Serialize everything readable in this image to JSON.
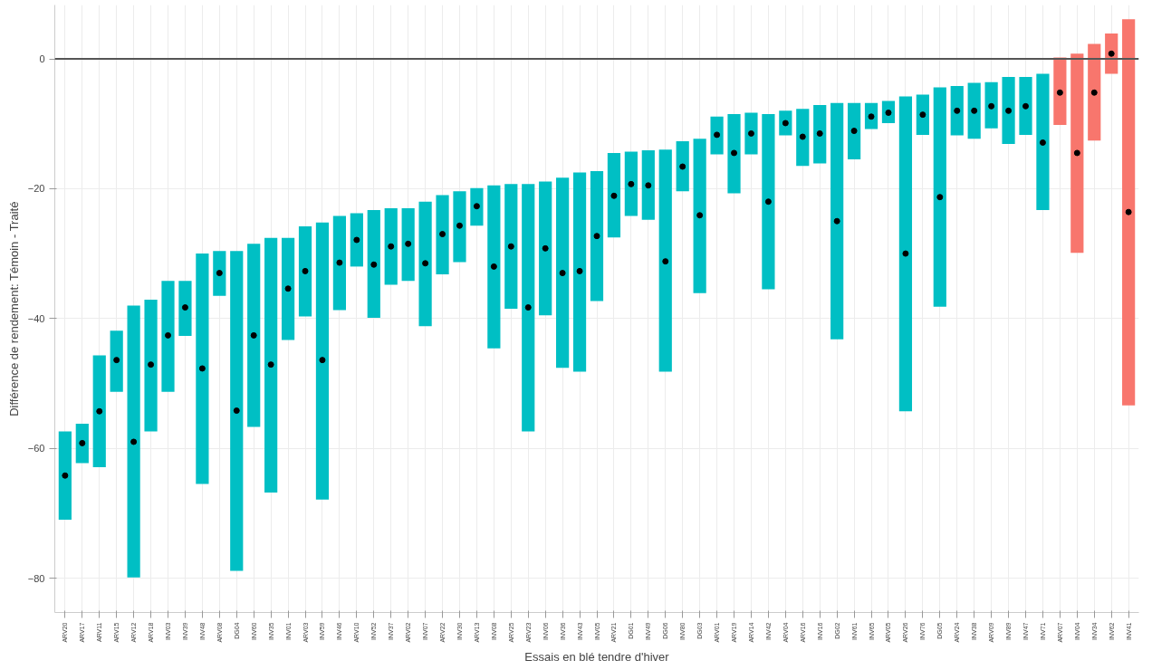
{
  "chart_data": {
    "type": "bar",
    "xlabel": "Essais en blé tendre d'hiver",
    "ylabel": "Différence de rendement: Témoin - Traité",
    "categories": [
      "ARV20",
      "ARV17",
      "ARV11",
      "ARV15",
      "ARV12",
      "ARV18",
      "INV03",
      "INV39",
      "INV48",
      "ARV08",
      "DG04",
      "INV60",
      "INV35",
      "INV01",
      "ARV03",
      "INV59",
      "INV46",
      "ARV10",
      "INV52",
      "INV37",
      "ARV02",
      "INV07",
      "ARV22",
      "INV30",
      "ARV13",
      "INV08",
      "ARV25",
      "ARV23",
      "INV06",
      "INV36",
      "INV43",
      "INV05",
      "ARV21",
      "DG01",
      "INV49",
      "DG06",
      "INV80",
      "DG03",
      "ARV01",
      "ARV19",
      "ARV14",
      "INV42",
      "ARV04",
      "ARV16",
      "INV16",
      "DG02",
      "INV61",
      "INV65",
      "ARV05",
      "ARV26",
      "INV76",
      "DG05",
      "ARV24",
      "INV38",
      "ARV09",
      "INV89",
      "INV47",
      "INV71",
      "ARV07",
      "INV04",
      "INV34",
      "INV62",
      "INV41"
    ],
    "series": [
      {
        "base": [
          -71,
          -62.3,
          -62.9,
          -51.3,
          -79.9,
          -57.4,
          -51.3,
          -42.7,
          -65.5,
          -36.5,
          -78.9,
          -56.7,
          -66.8,
          -43.3,
          -39.7,
          -67.9,
          -38.7,
          -32,
          -39.9,
          -34.8,
          -34.2,
          -41.2,
          -33.2,
          -31.3,
          -25.7,
          -44.6,
          -38.5,
          -57.4,
          -39.5,
          -47.6,
          -48.2,
          -37.3,
          -27.5,
          -24.2,
          -24.8,
          -48.2,
          -20.4,
          -36.1,
          -14.7,
          -20.7,
          -14.7,
          -35.5,
          -11.8,
          -16.5,
          -16.1,
          -43.2,
          -15.5,
          -10.8,
          -9.9,
          -54.3,
          -11.7,
          -38.2,
          -11.8,
          -12.3,
          -10.7,
          -13.1,
          -11.7,
          -23.3,
          -10.2,
          -29.9,
          -12.6,
          -2.3,
          -53.4
        ],
        "values": [
          13.6,
          6.1,
          17.2,
          9.4,
          41.9,
          20.3,
          17.1,
          8.5,
          35.5,
          6.9,
          49.3,
          28.2,
          39.2,
          15.7,
          13.9,
          42.7,
          14.5,
          8.2,
          16.6,
          11.8,
          11.2,
          19.2,
          12.2,
          10.9,
          5.8,
          25.1,
          19.2,
          38.1,
          20.6,
          29.3,
          30.7,
          20,
          13,
          9.9,
          10.7,
          34.2,
          7.7,
          23.8,
          5.8,
          12.2,
          6.4,
          27,
          3.8,
          8.8,
          9,
          36.4,
          8.7,
          4,
          3.4,
          48.5,
          6.2,
          33.8,
          7.6,
          8.6,
          7.1,
          10.3,
          8.9,
          21,
          10.4,
          30.7,
          14.9,
          6.2,
          59.5
        ],
        "colors": [
          "#00bfc4",
          "#00bfc4",
          "#00bfc4",
          "#00bfc4",
          "#00bfc4",
          "#00bfc4",
          "#00bfc4",
          "#00bfc4",
          "#00bfc4",
          "#00bfc4",
          "#00bfc4",
          "#00bfc4",
          "#00bfc4",
          "#00bfc4",
          "#00bfc4",
          "#00bfc4",
          "#00bfc4",
          "#00bfc4",
          "#00bfc4",
          "#00bfc4",
          "#00bfc4",
          "#00bfc4",
          "#00bfc4",
          "#00bfc4",
          "#00bfc4",
          "#00bfc4",
          "#00bfc4",
          "#00bfc4",
          "#00bfc4",
          "#00bfc4",
          "#00bfc4",
          "#00bfc4",
          "#00bfc4",
          "#00bfc4",
          "#00bfc4",
          "#00bfc4",
          "#00bfc4",
          "#00bfc4",
          "#00bfc4",
          "#00bfc4",
          "#00bfc4",
          "#00bfc4",
          "#00bfc4",
          "#00bfc4",
          "#00bfc4",
          "#00bfc4",
          "#00bfc4",
          "#00bfc4",
          "#00bfc4",
          "#00bfc4",
          "#00bfc4",
          "#00bfc4",
          "#00bfc4",
          "#00bfc4",
          "#00bfc4",
          "#00bfc4",
          "#00bfc4",
          "#00bfc4",
          "#f8766d",
          "#f8766d",
          "#f8766d",
          "#f8766d",
          "#f8766d"
        ]
      },
      {
        "type": "scatter",
        "color": "#000000",
        "x": [
          "ARV20",
          "ARV17",
          "ARV11",
          "ARV15",
          "ARV12",
          "ARV18",
          "INV03",
          "INV39",
          "INV48",
          "ARV08",
          "DG04",
          "INV60",
          "INV35",
          "INV01",
          "ARV03",
          "INV59",
          "INV46",
          "ARV10",
          "INV52",
          "INV37",
          "ARV02",
          "INV07",
          "ARV22",
          "INV30",
          "ARV13",
          "INV08",
          "ARV25",
          "ARV23",
          "INV06",
          "INV36",
          "INV43",
          "INV05",
          "ARV21",
          "DG01",
          "INV49",
          "DG06",
          "INV80",
          "DG03",
          "ARV01",
          "ARV19",
          "ARV14",
          "INV42",
          "ARV04",
          "ARV16",
          "INV16",
          "DG02",
          "INV61",
          "INV65",
          "ARV05",
          "ARV26",
          "INV76",
          "DG05",
          "ARV24",
          "INV38",
          "ARV09",
          "INV89",
          "INV47",
          "INV71",
          "ARV07",
          "INV04",
          "INV34",
          "INV62",
          "INV41"
        ],
        "values": [
          -64.2,
          -59.2,
          -54.3,
          -46.4,
          -59,
          -47.1,
          -42.6,
          -38.3,
          -47.7,
          -33,
          -54.2,
          -42.6,
          -47.1,
          -35.4,
          -32.7,
          -46.4,
          -31.4,
          -27.9,
          -31.7,
          -28.9,
          -28.5,
          -31.5,
          -27,
          -25.7,
          -22.7,
          -32,
          -28.9,
          -38.3,
          -29.2,
          -33,
          -32.7,
          -27.3,
          -21.1,
          -19.3,
          -19.5,
          -31.2,
          -16.6,
          -24.1,
          -11.7,
          -14.5,
          -11.5,
          -22,
          -9.9,
          -12,
          -11.5,
          -25,
          -11.1,
          -8.9,
          -8.3,
          -30,
          -8.6,
          -21.3,
          -8,
          -8,
          -7.3,
          -8,
          -7.3,
          -12.9,
          -5.2,
          -14.5,
          -5.2,
          0.8,
          -23.6
        ]
      }
    ],
    "ylim": [
      -85.3,
      8.3
    ],
    "yticks": [
      -80,
      -60,
      -40,
      -20,
      0
    ],
    "grid": true,
    "marker": "circle",
    "ref_lines": [
      {
        "axis": "y",
        "value": 0,
        "color": "#555555"
      }
    ]
  }
}
